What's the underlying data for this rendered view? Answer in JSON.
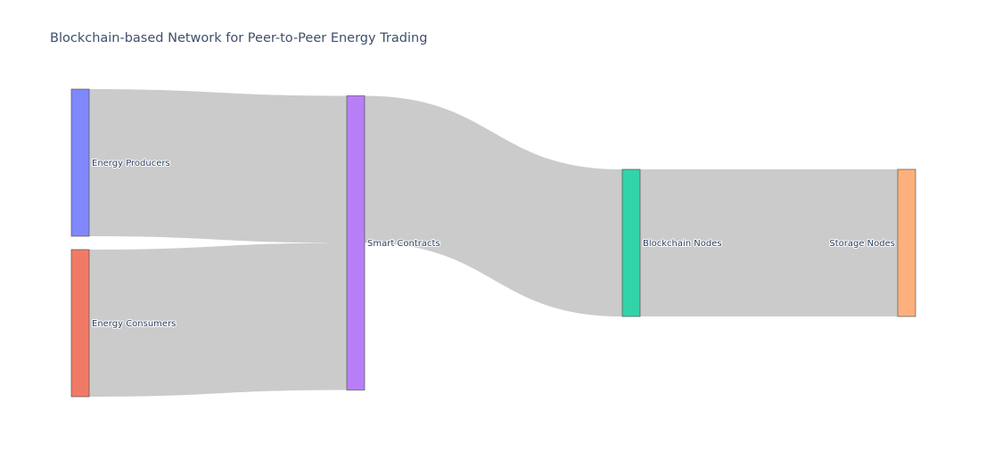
{
  "title": "Blockchain-based Network for Peer-to-Peer Energy Trading",
  "chart_data": {
    "type": "sankey",
    "title": "Blockchain-based Network for Peer-to-Peer Energy Trading",
    "nodes": [
      {
        "id": "energy-producers",
        "label": "Energy Producers",
        "color": "#8088fb",
        "column": 0
      },
      {
        "id": "energy-consumers",
        "label": "Energy Consumers",
        "color": "#f17a67",
        "column": 0
      },
      {
        "id": "smart-contracts",
        "label": "Smart Contracts",
        "color": "#b87ef8",
        "column": 1
      },
      {
        "id": "blockchain-nodes",
        "label": "Blockchain Nodes",
        "color": "#33d3a9",
        "column": 2
      },
      {
        "id": "storage-nodes",
        "label": "Storage Nodes",
        "color": "#fdb07c",
        "column": 3
      }
    ],
    "links": [
      {
        "source": "energy-producers",
        "target": "smart-contracts",
        "value": 1
      },
      {
        "source": "energy-consumers",
        "target": "smart-contracts",
        "value": 1
      },
      {
        "source": "smart-contracts",
        "target": "blockchain-nodes",
        "value": 1
      },
      {
        "source": "blockchain-nodes",
        "target": "storage-nodes",
        "value": 1
      }
    ]
  }
}
